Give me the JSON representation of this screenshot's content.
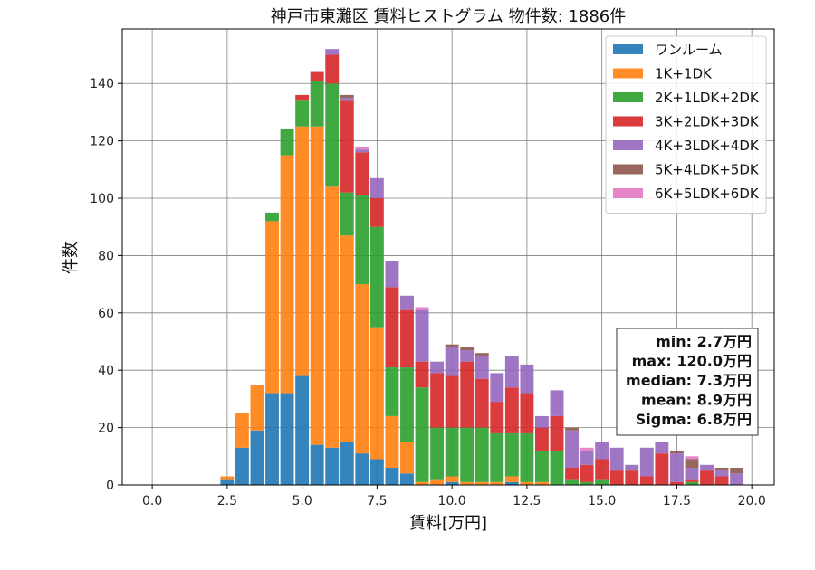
{
  "chart_data": {
    "type": "bar",
    "stacked": true,
    "title": "神戸市東灘区 賃料ヒストグラム  物件数: 1886件",
    "xlabel": "賃料[万円]",
    "ylabel": "件数",
    "xlim": [
      -1.0,
      20.75
    ],
    "ylim": [
      0,
      159
    ],
    "xticks": [
      0.0,
      2.5,
      5.0,
      7.5,
      10.0,
      12.5,
      15.0,
      17.5,
      20.0
    ],
    "xtick_labels": [
      "0.0",
      "2.5",
      "5.0",
      "7.5",
      "10.0",
      "12.5",
      "15.0",
      "17.5",
      "20.0"
    ],
    "yticks": [
      0,
      20,
      40,
      60,
      80,
      100,
      120,
      140
    ],
    "ytick_labels": [
      "0",
      "20",
      "40",
      "60",
      "80",
      "100",
      "120",
      "140"
    ],
    "grid": true,
    "legend_position": "top-right",
    "bin_width": 0.5,
    "x": [
      2.5,
      3.0,
      3.5,
      4.0,
      4.5,
      5.0,
      5.5,
      6.0,
      6.5,
      7.0,
      7.5,
      8.0,
      8.5,
      9.0,
      9.5,
      10.0,
      10.5,
      11.0,
      11.5,
      12.0,
      12.5,
      13.0,
      13.5,
      14.0,
      14.5,
      15.0,
      15.5,
      16.0,
      16.5,
      17.0,
      17.5,
      18.0,
      18.5,
      19.0,
      19.5
    ],
    "series": [
      {
        "name": "ワンルーム",
        "color": "#1f77b4",
        "values": [
          2,
          13,
          19,
          32,
          32,
          38,
          14,
          13,
          15,
          11,
          9,
          6,
          4,
          0,
          0,
          1,
          0,
          0,
          0,
          1,
          0,
          0,
          0,
          0,
          0,
          0,
          0,
          0,
          0,
          0,
          0,
          0,
          0,
          0,
          0
        ]
      },
      {
        "name": "1K+1DK",
        "color": "#ff7f0e",
        "values": [
          1,
          12,
          16,
          60,
          83,
          87,
          111,
          91,
          72,
          59,
          46,
          18,
          11,
          1,
          2,
          2,
          1,
          1,
          1,
          2,
          1,
          1,
          0,
          0,
          0,
          0,
          0,
          0,
          0,
          0,
          0,
          0,
          0,
          0,
          0
        ]
      },
      {
        "name": "2K+1LDK+2DK",
        "color": "#2ca02c",
        "values": [
          0,
          0,
          0,
          3,
          9,
          9,
          16,
          36,
          15,
          31,
          35,
          17,
          26,
          33,
          18,
          17,
          19,
          19,
          17,
          15,
          17,
          11,
          12,
          2,
          1,
          2,
          0,
          0,
          0,
          0,
          0,
          1,
          0,
          0,
          0
        ]
      },
      {
        "name": "3K+2LDK+3DK",
        "color": "#d62728",
        "values": [
          0,
          0,
          0,
          0,
          0,
          2,
          3,
          10,
          32,
          15,
          10,
          28,
          20,
          9,
          19,
          18,
          23,
          17,
          11,
          16,
          14,
          8,
          12,
          4,
          6,
          7,
          5,
          5,
          3,
          11,
          1,
          1,
          5,
          3,
          0
        ]
      },
      {
        "name": "4K+3LDK+4DK",
        "color": "#9467bd",
        "values": [
          0,
          0,
          0,
          0,
          0,
          0,
          0,
          2,
          1,
          1,
          7,
          9,
          5,
          18,
          4,
          10,
          4,
          8,
          10,
          11,
          10,
          4,
          9,
          13,
          5,
          6,
          8,
          2,
          10,
          4,
          10,
          4,
          2,
          2,
          4
        ]
      },
      {
        "name": "5K+4LDK+5DK",
        "color": "#8c564b",
        "values": [
          0,
          0,
          0,
          0,
          0,
          0,
          0,
          0,
          1,
          0,
          0,
          0,
          0,
          0,
          0,
          1,
          1,
          1,
          0,
          0,
          0,
          0,
          0,
          1,
          0,
          0,
          0,
          0,
          0,
          0,
          1,
          3,
          0,
          1,
          2
        ]
      },
      {
        "name": "6K+5LDK+6DK",
        "color": "#e377c2",
        "values": [
          0,
          0,
          0,
          0,
          0,
          0,
          0,
          0,
          0,
          1,
          0,
          0,
          0,
          1,
          0,
          0,
          0,
          0,
          0,
          0,
          0,
          0,
          0,
          0,
          1,
          0,
          0,
          0,
          0,
          0,
          0,
          1,
          0,
          0,
          0
        ]
      }
    ],
    "annotations": [
      "min: 2.7万円",
      "max: 120.0万円",
      "median: 7.3万円",
      "mean: 8.9万円",
      "Sigma: 6.8万円"
    ]
  }
}
